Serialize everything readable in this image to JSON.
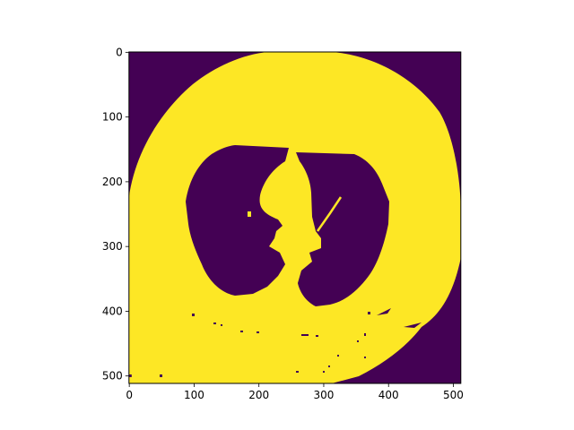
{
  "chart_data": {
    "type": "heatmap",
    "title": "",
    "xlabel": "",
    "ylabel": "",
    "image_size": [
      512,
      512
    ],
    "xlim": [
      0,
      512
    ],
    "ylim": [
      512,
      0
    ],
    "x_ticks": [
      0,
      100,
      200,
      300,
      400,
      500
    ],
    "y_ticks": [
      0,
      100,
      200,
      300,
      400,
      500
    ],
    "colormap": "viridis",
    "value_range": [
      0,
      1
    ],
    "colors": {
      "low": "#440154",
      "high": "#fde725"
    },
    "legend": "none",
    "grid": false
  }
}
